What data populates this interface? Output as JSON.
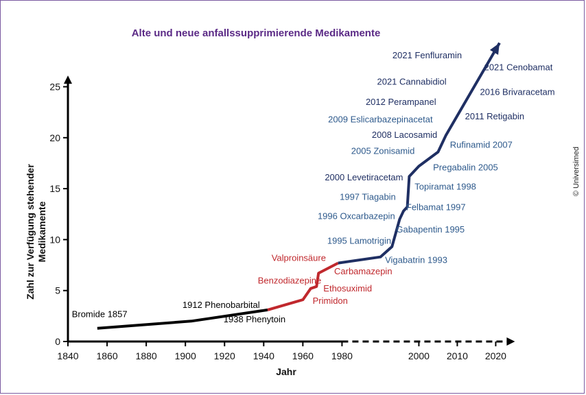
{
  "chart_data": {
    "type": "line",
    "title": "Alte und neue anfallssupprimierende Medikamente",
    "xlabel": "Jahr",
    "ylabel_lines": [
      "Zahl zur Verfügung stehender",
      "Medikamente"
    ],
    "xlim": [
      1840,
      2025
    ],
    "ylim": [
      0,
      26
    ],
    "x_ticks": [
      1840,
      1860,
      1880,
      1900,
      1920,
      1940,
      1960,
      1980,
      2000,
      2010,
      2020
    ],
    "y_ticks": [
      0,
      5,
      10,
      15,
      20,
      25
    ],
    "x_axis_note": "broken scale: 20-year steps up to 1980, 10-year steps afterwards; axis line dashed after 1980",
    "colors": {
      "early": "#000000",
      "middle": "#c0282d",
      "recent": "#1f2f63",
      "recent_label": "#2e5a8c",
      "axis": "#000000"
    },
    "series": [
      {
        "color_key": "early",
        "points": [
          [
            1855,
            1.3
          ],
          [
            1903,
            2.0
          ],
          [
            1942,
            3.1
          ]
        ]
      },
      {
        "color_key": "middle",
        "points": [
          [
            1942,
            3.1
          ],
          [
            1960,
            4.1
          ],
          [
            1964,
            5.2
          ],
          [
            1967,
            5.4
          ],
          [
            1968,
            6.7
          ],
          [
            1978,
            7.7
          ]
        ]
      },
      {
        "color_key": "recent",
        "points": [
          [
            1978,
            7.7
          ],
          [
            1990,
            8.3
          ],
          [
            1993,
            9.3
          ],
          [
            1995,
            12.0
          ],
          [
            1996,
            12.8
          ],
          [
            1997,
            13.2
          ],
          [
            1997.5,
            16.2
          ],
          [
            2000,
            17.2
          ],
          [
            2005,
            18.6
          ],
          [
            2007,
            20.2
          ],
          [
            2021,
            29.3
          ]
        ]
      }
    ],
    "annotations": [
      {
        "text": "Bromide 1857",
        "color_key": "early",
        "x": 1842,
        "y": 2.4,
        "anchor": "start"
      },
      {
        "text": "1912 Phenobarbital",
        "color_key": "early",
        "x": 1898.5,
        "y": 3.3,
        "anchor": "start"
      },
      {
        "text": "1938 Phenytoin",
        "color_key": "early",
        "x": 1919.5,
        "y": 1.9,
        "anchor": "start"
      },
      {
        "text": "Valproinsäure",
        "color_key": "middle",
        "x": 1944,
        "y": 7.9,
        "anchor": "start"
      },
      {
        "text": "Carbamazepin",
        "color_key": "middle",
        "x": 1976,
        "y": 6.6,
        "anchor": "start"
      },
      {
        "text": "Benzodiazepine",
        "color_key": "middle",
        "x": 1937,
        "y": 5.7,
        "anchor": "start"
      },
      {
        "text": "Ethosuximid",
        "color_key": "middle",
        "x": 1970.5,
        "y": 4.9,
        "anchor": "start"
      },
      {
        "text": "Primidon",
        "color_key": "middle",
        "x": 1965,
        "y": 3.7,
        "anchor": "start"
      },
      {
        "text": "Vigabatrin 1993",
        "color_key": "recent_label",
        "x": 1991.2,
        "y": 7.7,
        "anchor": "start"
      },
      {
        "text": "1995 Lamotrigin",
        "color_key": "recent_label",
        "x": 1992.8,
        "y": 9.6,
        "anchor": "end"
      },
      {
        "text": "Gabapentin 1995",
        "color_key": "recent_label",
        "x": 1994.1,
        "y": 10.7,
        "anchor": "start"
      },
      {
        "text": "1996 Oxcarbazepin",
        "color_key": "recent_label",
        "x": 1993.8,
        "y": 12.0,
        "anchor": "end"
      },
      {
        "text": "Felbamat 1997",
        "color_key": "recent_label",
        "x": 1996.7,
        "y": 12.9,
        "anchor": "start"
      },
      {
        "text": "1997 Tiagabin",
        "color_key": "recent_label",
        "x": 1994.0,
        "y": 13.9,
        "anchor": "end"
      },
      {
        "text": "Topiramat 1998",
        "color_key": "recent_label",
        "x": 1998.9,
        "y": 14.9,
        "anchor": "start"
      },
      {
        "text": "2000 Levetiracetam",
        "color_key": "recent",
        "x": 1995.9,
        "y": 15.8,
        "anchor": "end"
      },
      {
        "text": "Pregabalin 2005",
        "color_key": "recent_label",
        "x": 2003.7,
        "y": 16.8,
        "anchor": "start"
      },
      {
        "text": "2005 Zonisamid",
        "color_key": "recent_label",
        "x": 1998.9,
        "y": 18.4,
        "anchor": "end"
      },
      {
        "text": "Rufinamid 2007",
        "color_key": "recent_label",
        "x": 2008.1,
        "y": 19.0,
        "anchor": "start"
      },
      {
        "text": "2008 Lacosamid",
        "color_key": "recent",
        "x": 2004.8,
        "y": 20.0,
        "anchor": "end"
      },
      {
        "text": "2009 Eslicarbazepinacetat",
        "color_key": "recent_label",
        "x": 2003.6,
        "y": 21.5,
        "anchor": "end"
      },
      {
        "text": "2011 Retigabin",
        "color_key": "recent",
        "x": 2012.0,
        "y": 21.8,
        "anchor": "start"
      },
      {
        "text": "2012 Perampanel",
        "color_key": "recent",
        "x": 2004.5,
        "y": 23.2,
        "anchor": "end"
      },
      {
        "text": "2016 Brivaracetam",
        "color_key": "recent",
        "x": 2015.9,
        "y": 24.2,
        "anchor": "start"
      },
      {
        "text": "2021 Cannabidiol",
        "color_key": "recent",
        "x": 2007.2,
        "y": 25.2,
        "anchor": "end"
      },
      {
        "text": "2021 Cenobamat",
        "color_key": "recent",
        "x": 2017.0,
        "y": 26.6,
        "anchor": "start"
      },
      {
        "text": "2021 Fenfluramin",
        "color_key": "recent",
        "x": 2011.2,
        "y": 27.8,
        "anchor": "end"
      }
    ]
  },
  "credit": "© Universimed"
}
